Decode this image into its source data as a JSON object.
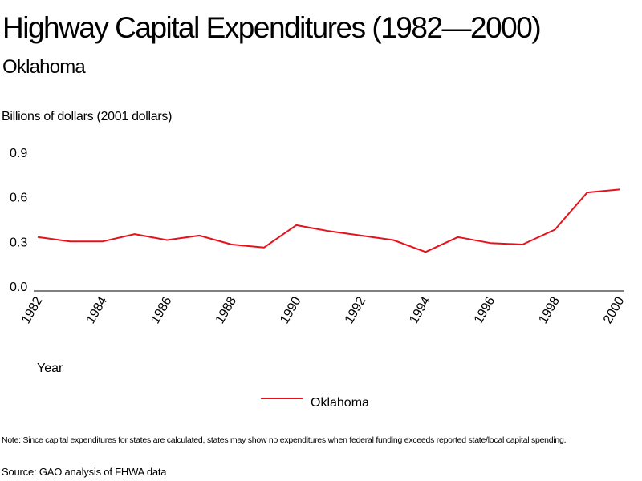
{
  "title": "Highway Capital Expenditures (1982—2000)",
  "subtitle": "Oklahoma",
  "note": "Note: Since capital expenditures for states are calculated, states may show no expenditures when federal funding exceeds reported state/local capital spending.",
  "source": "Source: GAO analysis of FHWA data",
  "chart_data": {
    "type": "line",
    "ylabel": "Billions of dollars (2001 dollars)",
    "xlabel": "Year",
    "ylim": [
      0,
      0.9
    ],
    "yticks": [
      "0.0",
      "0.3",
      "0.6",
      "0.9"
    ],
    "xticks": [
      "1982",
      "1984",
      "1986",
      "1988",
      "1990",
      "1992",
      "1994",
      "1996",
      "1998",
      "2000"
    ],
    "x": [
      1982,
      1983,
      1984,
      1985,
      1986,
      1987,
      1988,
      1989,
      1990,
      1991,
      1992,
      1993,
      1994,
      1995,
      1996,
      1997,
      1998,
      1999,
      2000
    ],
    "grid": false,
    "legend_position": "bottom-center",
    "series": [
      {
        "name": "Oklahoma",
        "color": "#e8101a",
        "values": [
          0.33,
          0.3,
          0.3,
          0.35,
          0.31,
          0.34,
          0.28,
          0.26,
          0.41,
          0.37,
          0.34,
          0.31,
          0.23,
          0.33,
          0.29,
          0.28,
          0.38,
          0.63,
          0.65
        ]
      }
    ]
  }
}
